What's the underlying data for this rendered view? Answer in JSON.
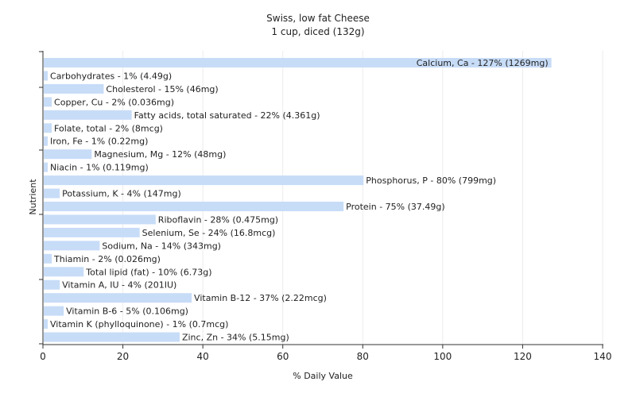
{
  "chart_data": {
    "type": "bar",
    "orientation": "horizontal",
    "title": "Swiss, low fat Cheese",
    "subtitle": "1 cup, diced (132g)",
    "xlabel": "% Daily Value",
    "ylabel": "Nutrient",
    "xlim": [
      0,
      140
    ],
    "xticks": [
      0,
      20,
      40,
      60,
      80,
      100,
      120,
      140
    ],
    "grid": true,
    "bar_color": "#c7dcf7",
    "categories": [
      "Calcium, Ca",
      "Carbohydrates",
      "Cholesterol",
      "Copper, Cu",
      "Fatty acids, total saturated",
      "Folate, total",
      "Iron, Fe",
      "Magnesium, Mg",
      "Niacin",
      "Phosphorus, P",
      "Potassium, K",
      "Protein",
      "Riboflavin",
      "Selenium, Se",
      "Sodium, Na",
      "Thiamin",
      "Total lipid (fat)",
      "Vitamin A, IU",
      "Vitamin B-12",
      "Vitamin B-6",
      "Vitamin K (phylloquinone)",
      "Zinc, Zn"
    ],
    "values": [
      127,
      1,
      15,
      2,
      22,
      2,
      1,
      12,
      1,
      80,
      4,
      75,
      28,
      24,
      14,
      2,
      10,
      4,
      37,
      5,
      1,
      34
    ],
    "labels": [
      "Calcium, Ca - 127% (1269mg)",
      "Carbohydrates - 1% (4.49g)",
      "Cholesterol - 15% (46mg)",
      "Copper, Cu - 2% (0.036mg)",
      "Fatty acids, total saturated - 22% (4.361g)",
      "Folate, total - 2% (8mcg)",
      "Iron, Fe - 1% (0.22mg)",
      "Magnesium, Mg - 12% (48mg)",
      "Niacin - 1% (0.119mg)",
      "Phosphorus, P - 80% (799mg)",
      "Potassium, K - 4% (147mg)",
      "Protein - 75% (37.49g)",
      "Riboflavin - 28% (0.475mg)",
      "Selenium, Se - 24% (16.8mcg)",
      "Sodium, Na - 14% (343mg)",
      "Thiamin - 2% (0.026mg)",
      "Total lipid (fat) - 10% (6.73g)",
      "Vitamin A, IU - 4% (201IU)",
      "Vitamin B-12 - 37% (2.22mcg)",
      "Vitamin B-6 - 5% (0.106mg)",
      "Vitamin K (phylloquinone) - 1% (0.7mcg)",
      "Zinc, Zn - 34% (5.15mg)"
    ]
  }
}
